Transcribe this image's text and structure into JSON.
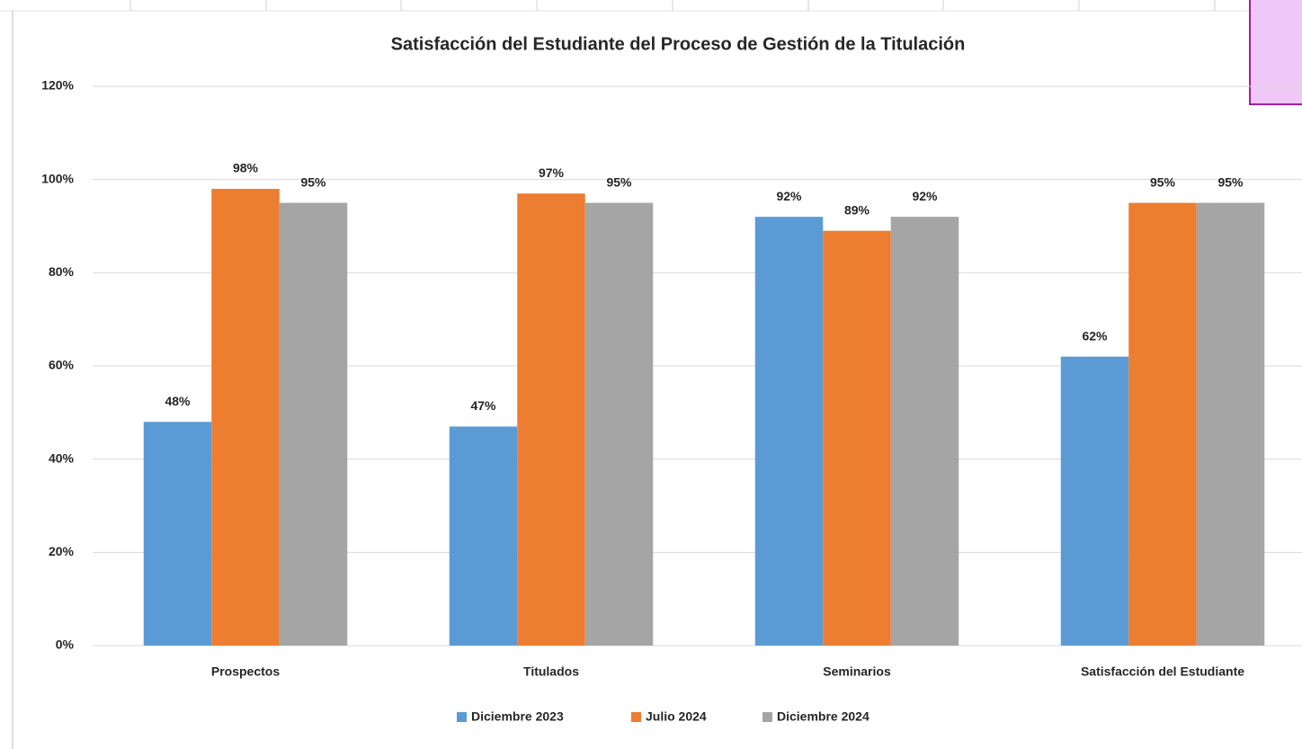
{
  "chart_data": {
    "type": "bar",
    "title": "Satisfacción del Estudiante del Proceso de Gestión de la Titulación",
    "categories": [
      "Prospectos",
      "Titulados",
      "Seminarios",
      "Satisfacción del Estudiante"
    ],
    "series": [
      {
        "name": "Diciembre 2023",
        "color": "#5b9bd5",
        "values": [
          48,
          47,
          92,
          62
        ],
        "value_labels": [
          "48%",
          "47%",
          "92%",
          "62%"
        ]
      },
      {
        "name": "Julio 2024",
        "color": "#ed7d31",
        "values": [
          98,
          97,
          89,
          95
        ],
        "value_labels": [
          "98%",
          "97%",
          "89%",
          "95%"
        ]
      },
      {
        "name": "Diciembre 2024",
        "color": "#a5a5a5",
        "values": [
          95,
          95,
          92,
          95
        ],
        "value_labels": [
          "95%",
          "95%",
          "92%",
          "95%"
        ]
      }
    ],
    "ylim": [
      0,
      120
    ],
    "yticks": [
      {
        "value": 0,
        "label": "0%"
      },
      {
        "value": 20,
        "label": "20%"
      },
      {
        "value": 40,
        "label": "40%"
      },
      {
        "value": 60,
        "label": "60%"
      },
      {
        "value": 80,
        "label": "80%"
      },
      {
        "value": 100,
        "label": "100%"
      },
      {
        "value": 120,
        "label": "120%"
      }
    ],
    "grid": true,
    "legend": "bottom"
  }
}
